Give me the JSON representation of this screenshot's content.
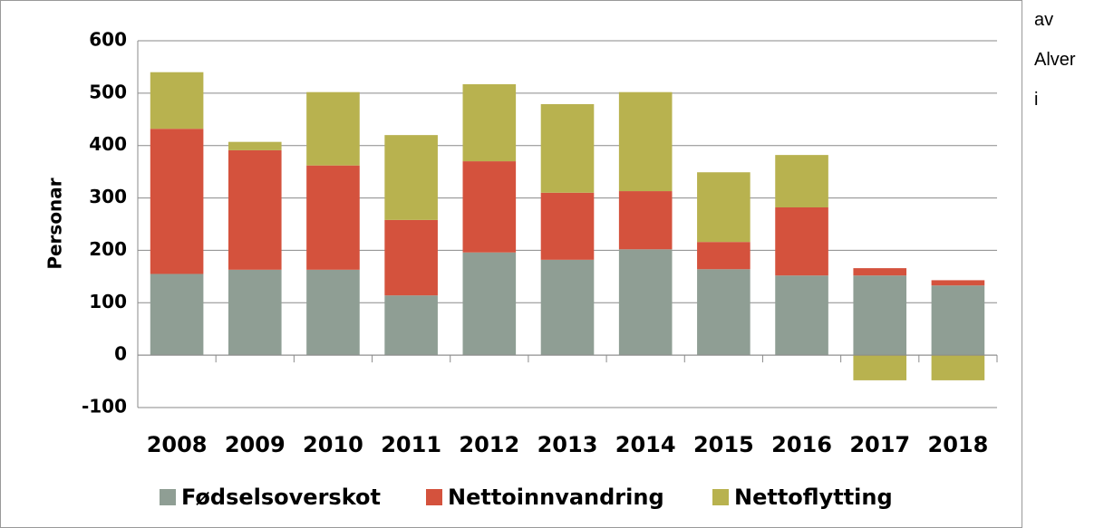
{
  "chart_data": {
    "type": "stacked_bar",
    "y_label": "Personar",
    "categories": [
      "2008",
      "2009",
      "2010",
      "2011",
      "2012",
      "2013",
      "2014",
      "2015",
      "2016",
      "2017",
      "2018"
    ],
    "series": [
      {
        "name": "Fødselsoverskot",
        "color": "#8f9e94",
        "values": [
          155,
          163,
          163,
          114,
          196,
          182,
          202,
          164,
          152,
          152,
          133
        ]
      },
      {
        "name": "Nettoinnvandring",
        "color": "#d4523d",
        "values": [
          277,
          228,
          199,
          144,
          174,
          128,
          111,
          52,
          130,
          14,
          10
        ]
      },
      {
        "name": "Nettoflytting",
        "color": "#b8b24f",
        "values": [
          108,
          16,
          140,
          162,
          147,
          169,
          189,
          133,
          100,
          -48,
          -48
        ]
      }
    ],
    "ylim": [
      -100,
      600
    ],
    "yticks": [
      -100,
      0,
      100,
      200,
      300,
      400,
      500,
      600
    ],
    "grid": true,
    "legend": "bottom"
  },
  "side_text": [
    "av",
    "Alver",
    "i"
  ]
}
